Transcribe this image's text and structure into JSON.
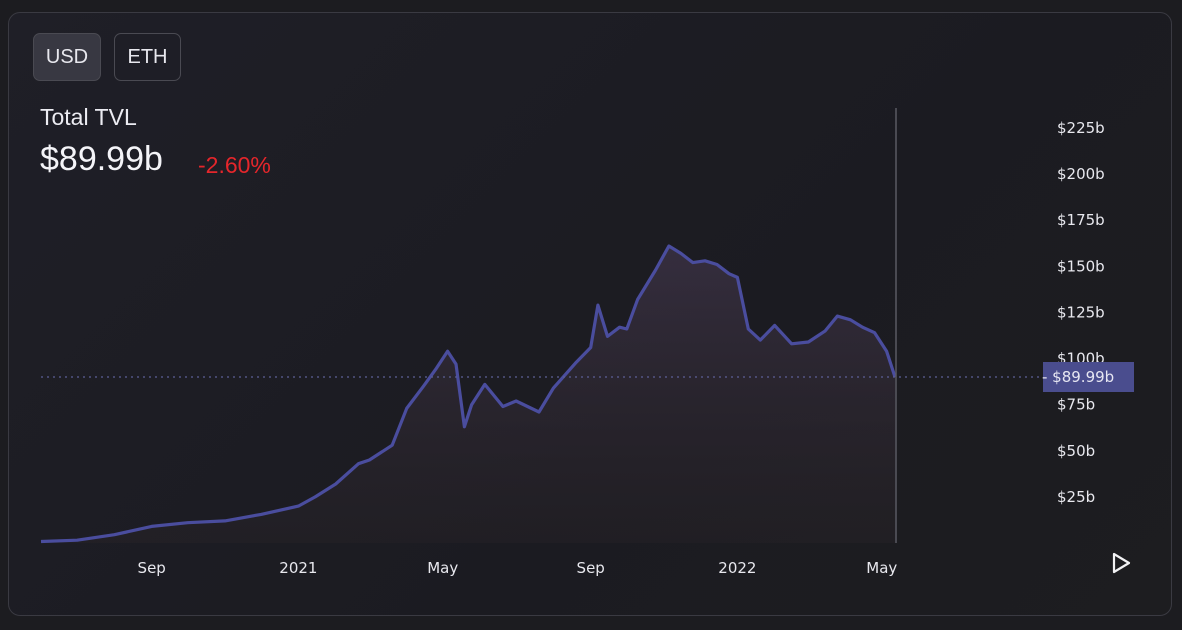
{
  "currency_toggle": {
    "options": [
      {
        "label": "USD",
        "active": true
      },
      {
        "label": "ETH",
        "active": false
      }
    ]
  },
  "summary": {
    "label": "Total TVL",
    "value": "$89.99b",
    "change": "-2.60%"
  },
  "colors": {
    "line": "#4a4d9e",
    "change_negative": "#e5262b",
    "current_badge": "#4a4d8e"
  },
  "icons": {
    "play": "play-icon"
  },
  "chart_data": {
    "type": "area",
    "title": "Total TVL",
    "ylabel": "",
    "xlabel": "",
    "ylim": [
      0,
      225
    ],
    "y_unit": "$b",
    "y_ticks": [
      {
        "value": 25,
        "label": "$25b"
      },
      {
        "value": 50,
        "label": "$50b"
      },
      {
        "value": 75,
        "label": "$75b"
      },
      {
        "value": 100,
        "label": "$100b"
      },
      {
        "value": 125,
        "label": "$125b"
      },
      {
        "value": 150,
        "label": "$150b"
      },
      {
        "value": 175,
        "label": "$175b"
      },
      {
        "value": 200,
        "label": "$200b"
      },
      {
        "value": 225,
        "label": "$225b"
      }
    ],
    "x_range": [
      "2020-06-01",
      "2022-05-12"
    ],
    "x_ticks": [
      {
        "date": "2020-09-01",
        "label": "Sep"
      },
      {
        "date": "2021-01-01",
        "label": "2021"
      },
      {
        "date": "2021-05-01",
        "label": "May"
      },
      {
        "date": "2021-09-01",
        "label": "Sep"
      },
      {
        "date": "2022-01-01",
        "label": "2022"
      },
      {
        "date": "2022-05-01",
        "label": "May"
      }
    ],
    "current": {
      "value": 89.99,
      "label": "$89.99b"
    },
    "grid": false,
    "series": [
      {
        "points": [
          [
            "2020-06-01",
            0.8
          ],
          [
            "2020-07-01",
            1.5
          ],
          [
            "2020-08-01",
            4.5
          ],
          [
            "2020-09-01",
            9
          ],
          [
            "2020-10-01",
            11
          ],
          [
            "2020-11-01",
            12
          ],
          [
            "2020-12-01",
            15.5
          ],
          [
            "2021-01-01",
            20
          ],
          [
            "2021-01-15",
            25
          ],
          [
            "2021-02-01",
            32
          ],
          [
            "2021-02-20",
            43
          ],
          [
            "2021-03-01",
            45
          ],
          [
            "2021-03-20",
            53
          ],
          [
            "2021-04-01",
            73
          ],
          [
            "2021-04-15",
            85
          ],
          [
            "2021-04-25",
            94
          ],
          [
            "2021-05-05",
            104
          ],
          [
            "2021-05-12",
            97
          ],
          [
            "2021-05-19",
            63
          ],
          [
            "2021-05-25",
            75
          ],
          [
            "2021-06-05",
            86
          ],
          [
            "2021-06-20",
            74
          ],
          [
            "2021-07-01",
            77
          ],
          [
            "2021-07-20",
            71
          ],
          [
            "2021-08-01",
            84
          ],
          [
            "2021-08-20",
            98
          ],
          [
            "2021-09-01",
            106
          ],
          [
            "2021-09-07",
            129
          ],
          [
            "2021-09-15",
            112
          ],
          [
            "2021-09-25",
            117
          ],
          [
            "2021-10-01",
            116
          ],
          [
            "2021-10-10",
            132
          ],
          [
            "2021-10-25",
            148
          ],
          [
            "2021-11-05",
            161
          ],
          [
            "2021-11-15",
            157
          ],
          [
            "2021-11-25",
            152
          ],
          [
            "2021-12-05",
            153
          ],
          [
            "2021-12-15",
            151
          ],
          [
            "2021-12-25",
            146
          ],
          [
            "2022-01-01",
            144
          ],
          [
            "2022-01-10",
            116
          ],
          [
            "2022-01-20",
            110
          ],
          [
            "2022-02-01",
            118
          ],
          [
            "2022-02-15",
            108
          ],
          [
            "2022-03-01",
            109
          ],
          [
            "2022-03-15",
            115
          ],
          [
            "2022-03-25",
            123
          ],
          [
            "2022-04-05",
            121
          ],
          [
            "2022-04-15",
            117
          ],
          [
            "2022-04-25",
            114
          ],
          [
            "2022-05-05",
            104
          ],
          [
            "2022-05-12",
            89.99
          ]
        ]
      }
    ]
  }
}
